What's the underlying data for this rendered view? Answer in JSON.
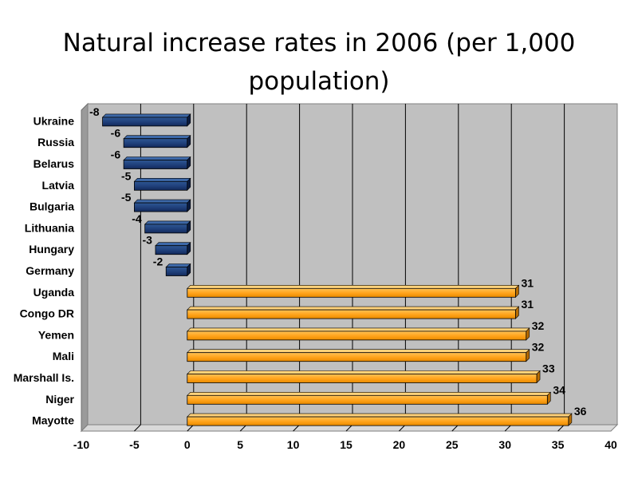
{
  "chart_data": {
    "type": "bar",
    "orientation": "horizontal",
    "title": "Natural increase rates in 2006 (per 1,000 population)",
    "categories": [
      "Ukraine",
      "Russia",
      "Belarus",
      "Latvia",
      "Bulgaria",
      "Lithuania",
      "Hungary",
      "Germany",
      "Uganda",
      "Congo DR",
      "Yemen",
      "Mali",
      "Marshall Is.",
      "Niger",
      "Mayotte"
    ],
    "values": [
      -8,
      -6,
      -6,
      -5,
      -5,
      -4,
      -3,
      -2,
      31,
      31,
      32,
      32,
      33,
      34,
      36
    ],
    "xlim": [
      -10,
      40
    ],
    "xticks": [
      -10,
      -5,
      0,
      5,
      10,
      15,
      20,
      25,
      30,
      35,
      40
    ],
    "grid": true,
    "style": "3d",
    "colors": {
      "negative": "#1f3f7a",
      "positive": "#ffa31a",
      "plot_bg": "#c0c0c0",
      "wall_side": "#9a9a9a",
      "floor": "#d9d9d9"
    }
  }
}
